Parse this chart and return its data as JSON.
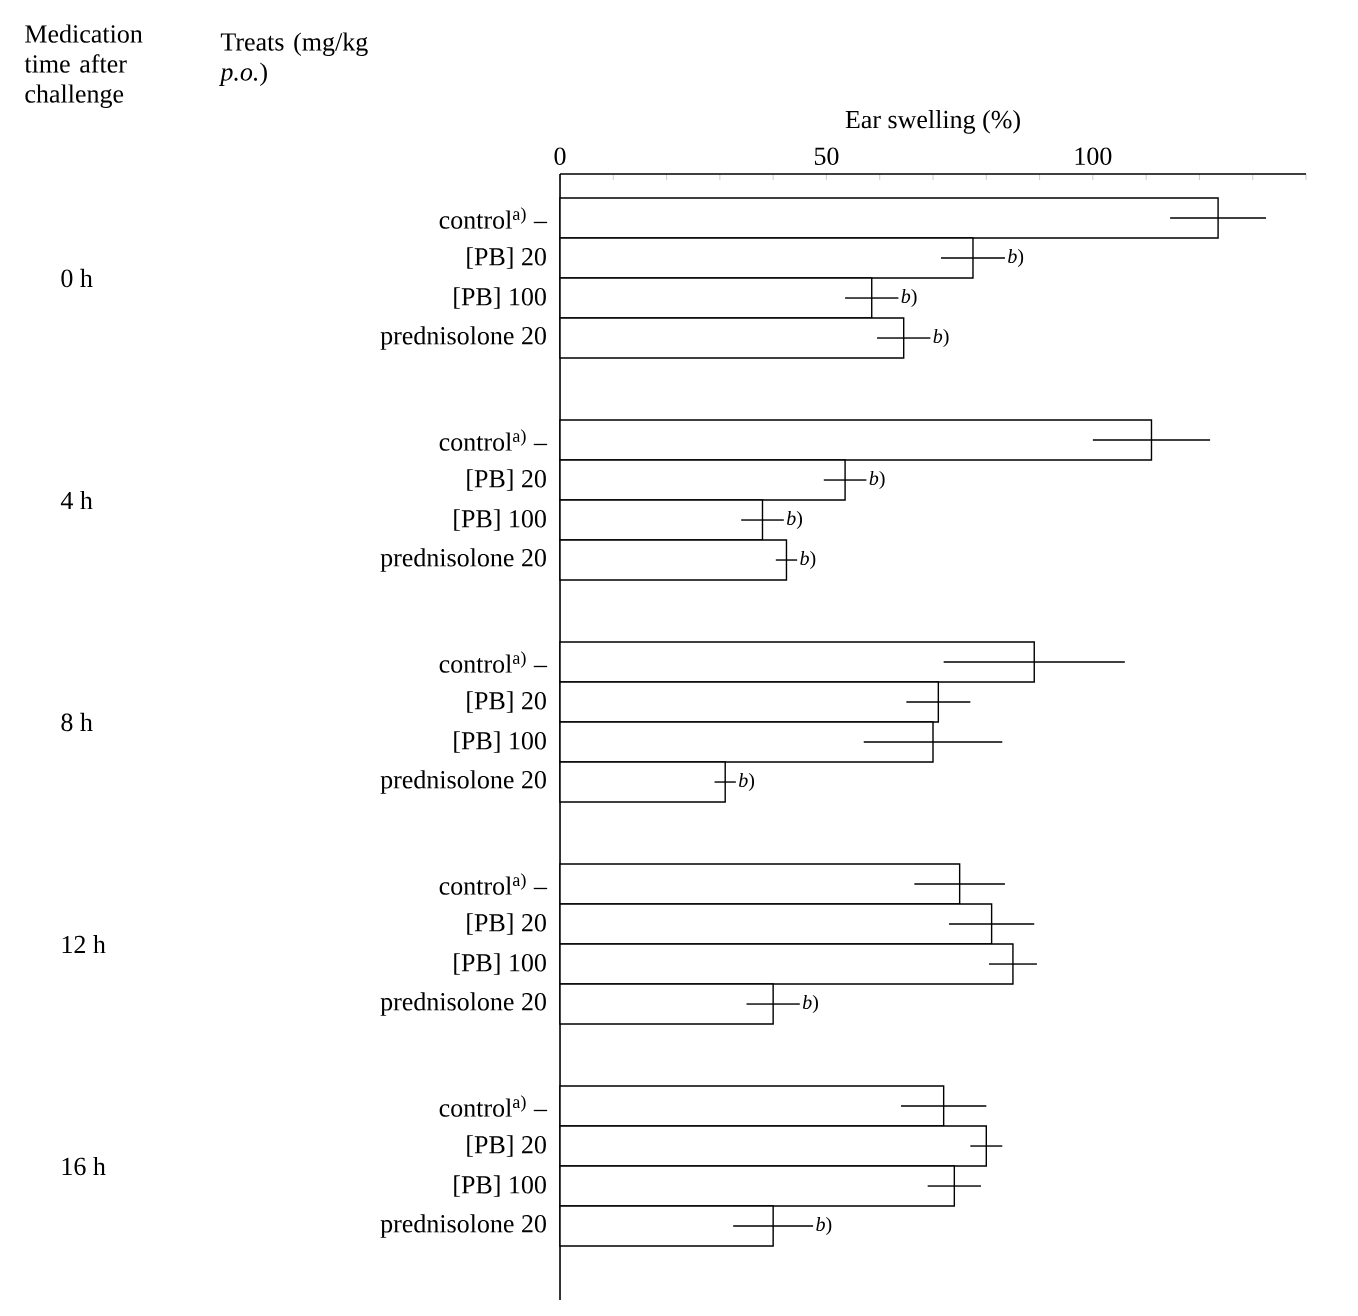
{
  "chart_data": {
    "type": "bar",
    "orientation": "horizontal",
    "xlabel": "Ear swelling (%)",
    "ylabel": "Treats (mg/kg *p.o.*)",
    "annotations": [
      "Medication time after challenge",
      "0 h",
      "4 h",
      "8 h",
      "12 h",
      "16 h"
    ],
    "categories": [
      "control$^{a)}$ –",
      "[PB] 20",
      "[PB] 100",
      "prednisolone 20",
      "control$^{a)}$ –",
      "[PB] 20",
      "[PB] 100",
      "prednisolone 20",
      "control$^{a)}$ –",
      "[PB] 20",
      "[PB] 100",
      "prednisolone 20",
      "control$^{a)}$ –",
      "[PB] 20",
      "[PB] 100",
      "prednisolone 20",
      "control$^{a)}$ –",
      "[PB] 20",
      "[PB] 100",
      "prednisolone 20"
    ],
    "values": [
      123.5,
      77.5,
      58.5,
      64.5,
      111,
      53.5,
      38,
      42.5,
      89,
      71,
      70,
      31,
      75,
      81,
      85,
      40,
      72,
      80,
      74,
      40
    ],
    "errors": [
      9,
      6,
      5,
      5,
      11,
      4,
      4,
      2,
      17,
      6,
      13,
      2,
      8.5,
      8,
      4.5,
      5,
      8,
      3,
      5,
      7.5
    ],
    "value_labels": [
      null,
      "*b*)",
      "*b*)",
      "*b*)",
      null,
      "*b*)",
      "*b*)",
      "*b*)",
      null,
      null,
      null,
      "*b*)",
      null,
      null,
      null,
      "*b*)",
      null,
      null,
      null,
      "*b*)"
    ],
    "color": "#000000",
    "xlim": [
      0,
      140
    ],
    "xticks": [
      0,
      {
        "value": 10,
        "label": null
      },
      {
        "value": 20,
        "label": null
      },
      {
        "value": 30,
        "label": null
      },
      {
        "value": 40,
        "label": null
      },
      50,
      {
        "value": 60,
        "label": null
      },
      {
        "value": 70,
        "label": null
      },
      {
        "value": 80,
        "label": null
      },
      {
        "value": 90,
        "label": null
      },
      100,
      {
        "value": 110,
        "label": null
      },
      {
        "value": 120,
        "label": null
      },
      {
        "value": 130,
        "label": null
      },
      {
        "value": 140,
        "label": null
      }
    ]
  }
}
